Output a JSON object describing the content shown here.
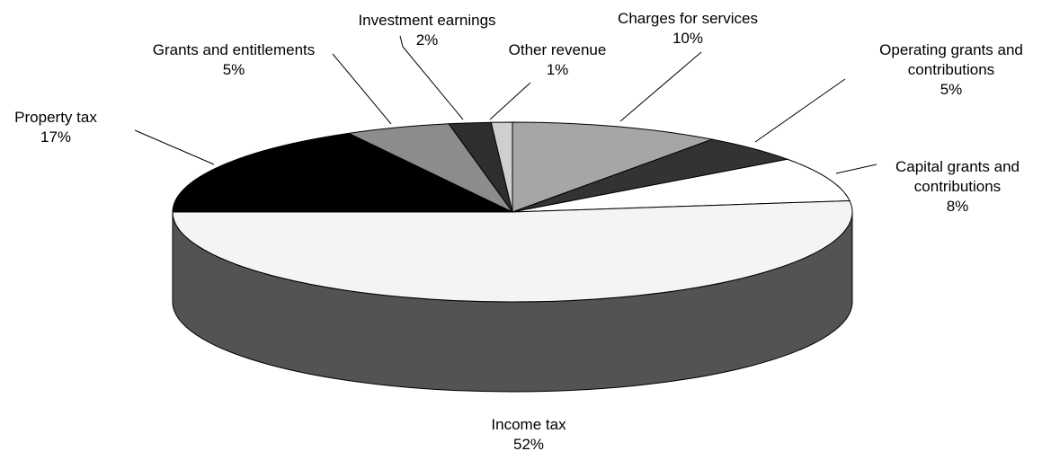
{
  "chart_data": {
    "type": "pie",
    "categories": [
      "Property tax",
      "Grants and entitlements",
      "Investment earnings",
      "Other revenue",
      "Charges for services",
      "Operating grants and contributions",
      "Capital grants and contributions",
      "Income tax"
    ],
    "values": [
      17,
      5,
      2,
      1,
      10,
      5,
      8,
      52
    ],
    "value_labels": [
      "17%",
      "5%",
      "2%",
      "1%",
      "10%",
      "5%",
      "8%",
      "52%"
    ],
    "colors": [
      "#000000",
      "#8c8c8c",
      "#2e2e2e",
      "#cfcfcf",
      "#a6a6a6",
      "#333333",
      "#ffffff",
      "#f4f4f4"
    ]
  }
}
